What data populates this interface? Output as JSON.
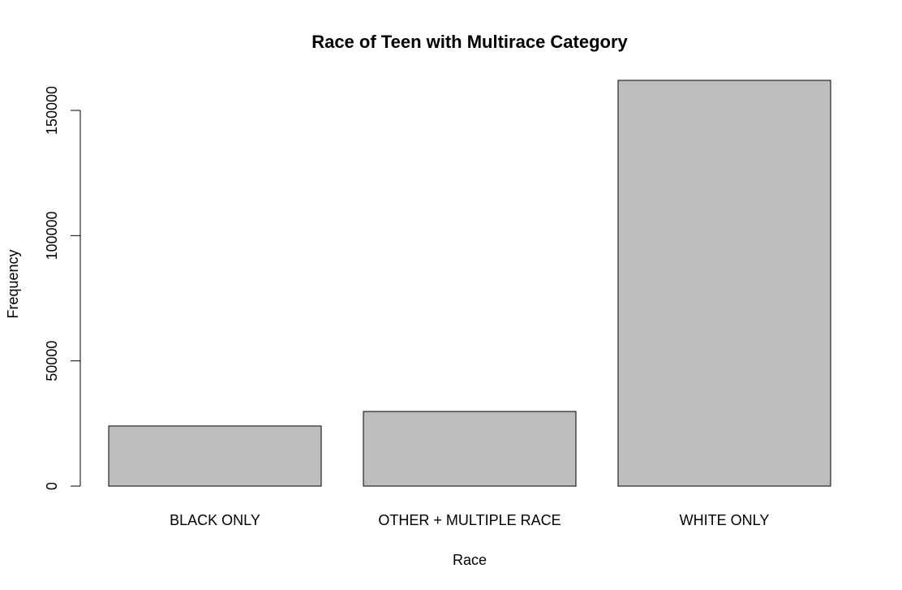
{
  "chart_data": {
    "type": "bar",
    "title": "Race of Teen with Multirace Category",
    "xlabel": "Race",
    "ylabel": "Frequency",
    "categories": [
      "BLACK ONLY",
      "OTHER + MULTIPLE RACE",
      "WHITE ONLY"
    ],
    "values": [
      24000,
      29800,
      162000
    ],
    "ylim": [
      0,
      162000
    ],
    "yticks": [
      0,
      50000,
      100000,
      150000
    ],
    "ytick_labels": [
      "0",
      "50000",
      "100000",
      "150000"
    ],
    "bar_color": "#bebebe",
    "grid": false,
    "legend": "none"
  }
}
